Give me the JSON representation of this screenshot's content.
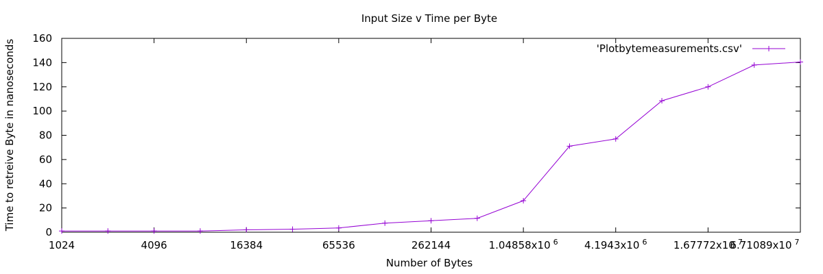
{
  "chart_data": {
    "type": "line",
    "title": "Input Size v Time per Byte",
    "xlabel": "Number of Bytes",
    "ylabel": "Time to retreive Byte in nanoseconds",
    "xscale": "log2",
    "xlim": [
      1024,
      67108864
    ],
    "ylim": [
      0,
      160
    ],
    "grid": false,
    "legend_position": "top-right",
    "y_ticks": [
      0,
      20,
      40,
      60,
      80,
      100,
      120,
      140,
      160
    ],
    "x_ticks": [
      {
        "value": 1024,
        "mantissa": "1024",
        "exp": ""
      },
      {
        "value": 4096,
        "mantissa": "4096",
        "exp": ""
      },
      {
        "value": 16384,
        "mantissa": "16384",
        "exp": ""
      },
      {
        "value": 65536,
        "mantissa": "65536",
        "exp": ""
      },
      {
        "value": 262144,
        "mantissa": "262144",
        "exp": ""
      },
      {
        "value": 1048576,
        "mantissa": "1.04858x10",
        "exp": "6"
      },
      {
        "value": 4194304,
        "mantissa": "4.1943x10",
        "exp": "6"
      },
      {
        "value": 16777216,
        "mantissa": "1.67772x10",
        "exp": "7"
      },
      {
        "value": 67108864,
        "mantissa": "6.71089x10",
        "exp": "7"
      }
    ],
    "series": [
      {
        "name": "'Plotbytemeasurements.csv'",
        "color": "#9400d3",
        "marker": "plus",
        "x": [
          1024,
          2048,
          4096,
          8192,
          16384,
          32768,
          65536,
          131072,
          262144,
          524288,
          1048576,
          2097152,
          4194304,
          8388608,
          16777216,
          33554432,
          67108864
        ],
        "y": [
          1,
          1,
          1,
          1,
          2,
          2.5,
          3.5,
          7.5,
          9.5,
          11.5,
          26,
          71,
          77,
          108.5,
          120,
          138,
          140.5
        ]
      }
    ]
  }
}
